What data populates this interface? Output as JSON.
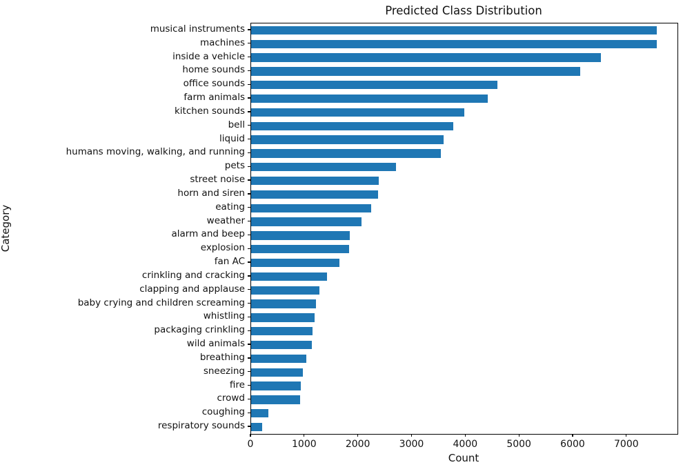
{
  "chart_data": {
    "type": "bar",
    "orientation": "horizontal",
    "title": "Predicted Class Distribution",
    "xlabel": "Count",
    "ylabel": "Category",
    "categories": [
      "musical instruments",
      "machines",
      "inside a vehicle",
      "home sounds",
      "office sounds",
      "farm animals",
      "kitchen sounds",
      "bell",
      "liquid",
      "humans moving, walking, and running",
      "pets",
      "street noise",
      "horn and siren",
      "eating",
      "weather",
      "alarm and beep",
      "explosion",
      "fan AC",
      "crinkling and cracking",
      "clapping and applause",
      "baby crying and children screaming",
      "whistling",
      "packaging crinkling",
      "wild animals",
      "breathing",
      "sneezing",
      "fire",
      "crowd",
      "coughing",
      "respiratory sounds"
    ],
    "values": [
      7560,
      7550,
      6510,
      6130,
      4590,
      4410,
      3970,
      3770,
      3590,
      3530,
      2700,
      2380,
      2370,
      2240,
      2050,
      1840,
      1830,
      1640,
      1410,
      1270,
      1210,
      1180,
      1140,
      1130,
      1030,
      960,
      920,
      910,
      320,
      200
    ],
    "xlim": [
      0,
      7940
    ],
    "x_ticks": [
      0,
      1000,
      2000,
      3000,
      4000,
      5000,
      6000,
      7000
    ],
    "bar_color": "#1f77b4",
    "grid": false,
    "legend": false
  }
}
